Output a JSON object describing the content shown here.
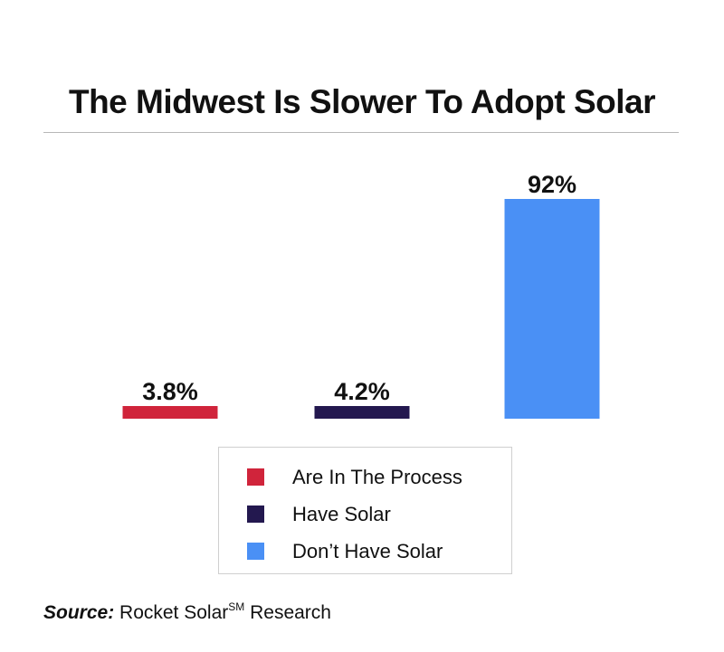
{
  "chart_data": {
    "type": "bar",
    "title": "The Midwest Is Slower To Adopt Solar",
    "categories": [
      "Are In The Process",
      "Have Solar",
      "Don’t Have Solar"
    ],
    "values": [
      3.8,
      4.2,
      92
    ],
    "value_labels": [
      "3.8%",
      "4.2%",
      "92%"
    ],
    "colors": [
      "#d0243b",
      "#23184f",
      "#4a90f5"
    ],
    "ylim": [
      0,
      92
    ],
    "grid": false,
    "legend_position": "bottom-center"
  },
  "legend": {
    "items": [
      {
        "label": "Are In The Process",
        "color": "#d0243b"
      },
      {
        "label": "Have Solar",
        "color": "#23184f"
      },
      {
        "label": "Don’t Have Solar",
        "color": "#4a90f5"
      }
    ]
  },
  "source": {
    "label": "Source:",
    "text": "Rocket Solar",
    "mark": "SM",
    "suffix": "Research"
  }
}
